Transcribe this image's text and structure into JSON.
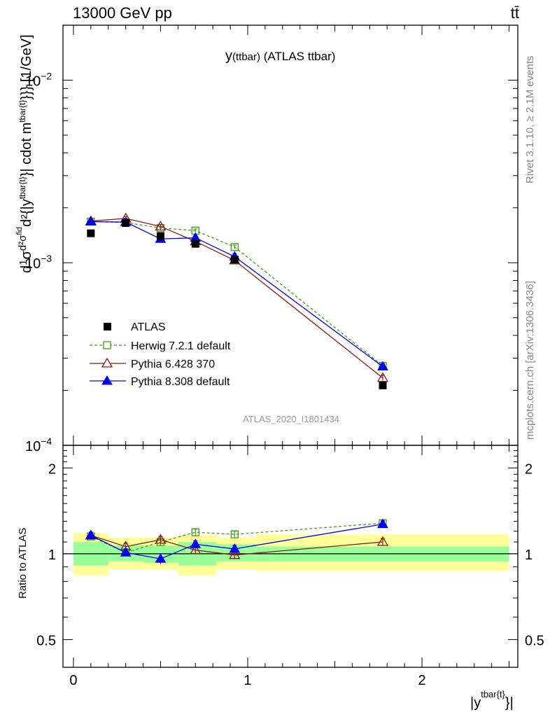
{
  "header": {
    "left": "13000 GeV pp",
    "right": "tt̄"
  },
  "side_text": {
    "rivet": "Rivet 3.1.10, ≥ 2.1M events",
    "mcplots": "mcplots.cern.ch [arXiv:1306.3436]"
  },
  "chart_data": [
    {
      "type": "scatter",
      "title": "y(ttbar) (ATLAS ttbar)",
      "title_parts": {
        "main": "y",
        "sub": "(ttbar)",
        "rest": " (ATLAS ttbar)"
      },
      "watermark": "ATLAS_2020_I1801434",
      "ylabel": "d¹/σ d²σᶠⁱᵈ/d²{|yᵗᵇᵃʳ{t}|} cdot mᵗᵇᵃʳ{t}}}} [1/GeV]",
      "ylabel_parts": {
        "d": "d",
        "one": "1",
        "sigma": "σ",
        "d2sigma": "d²σ",
        "fid": "fid",
        "d2": "d²",
        "absy": "{|y",
        "sup1": "tbar{t}",
        "cdot": "}| cdot m",
        "sup2": "tbar{t}",
        "tail": "}}} [1/GeV]"
      },
      "yscale": "log",
      "ylim": [
        0.0001,
        0.02
      ],
      "xlim": [
        -0.06,
        2.55
      ],
      "y_ticks": [
        {
          "value": 0.01,
          "base": "10",
          "exp": "−2"
        },
        {
          "value": 0.001,
          "base": "10",
          "exp": "−3"
        },
        {
          "value": 0.0001,
          "base": "10",
          "exp": "−4"
        }
      ],
      "legend_position": "middle-left",
      "series": [
        {
          "name": "ATLAS",
          "color": "#000000",
          "marker": "square-filled",
          "line": "none",
          "x": [
            0.1,
            0.3,
            0.5,
            0.7,
            0.925,
            1.775
          ],
          "y": [
            0.00145,
            0.00165,
            0.0014,
            0.00127,
            0.00104,
            0.000213
          ],
          "yerr": [
            4e-05,
            4e-05,
            4e-05,
            3e-05,
            3e-05,
            6e-06
          ]
        },
        {
          "name": "Herwig 7.2.1 default",
          "color": "#3f9e18",
          "marker": "square-open",
          "line": "dashed",
          "x": [
            0.1,
            0.3,
            0.5,
            0.7,
            0.925,
            1.775
          ],
          "y": [
            0.00168,
            0.00166,
            0.00155,
            0.0015,
            0.00122,
            0.000272
          ],
          "yerr": [
            3e-05,
            3e-05,
            3e-05,
            3e-05,
            3e-05,
            8e-06
          ]
        },
        {
          "name": "Pythia 6.428 370",
          "color": "#8b1a1a",
          "marker": "triangle-open",
          "line": "solid",
          "x": [
            0.1,
            0.3,
            0.5,
            0.7,
            0.925,
            1.775
          ],
          "y": [
            0.00169,
            0.00175,
            0.00158,
            0.00131,
            0.00103,
            0.000234
          ],
          "yerr": [
            3e-05,
            4e-05,
            4e-05,
            3e-05,
            3e-05,
            8e-06
          ]
        },
        {
          "name": "Pythia 8.308 default",
          "color": "#0000ee",
          "marker": "triangle-filled",
          "line": "solid",
          "x": [
            0.1,
            0.3,
            0.5,
            0.7,
            0.925,
            1.775
          ],
          "y": [
            0.00168,
            0.00167,
            0.00135,
            0.00137,
            0.00108,
            0.00027
          ],
          "yerr": [
            4e-05,
            4e-05,
            5e-05,
            4e-05,
            4e-05,
            1e-05
          ]
        }
      ]
    },
    {
      "type": "scatter",
      "ylabel": "Ratio to ATLAS",
      "xlabel": "|y",
      "xlabel_sup": "tbar{t}",
      "xlabel_tail": "}|",
      "yscale": "log",
      "ylim": [
        0.4,
        2.4
      ],
      "xlim": [
        -0.06,
        2.55
      ],
      "x_ticks": [
        {
          "value": 0,
          "label": "0"
        },
        {
          "value": 1,
          "label": "1"
        },
        {
          "value": 2,
          "label": "2"
        }
      ],
      "y_ticks": [
        {
          "value": 0.5,
          "label": "0.5"
        },
        {
          "value": 1,
          "label": "1"
        },
        {
          "value": 2,
          "label": "2"
        }
      ],
      "bands": {
        "edges": [
          0,
          0.2,
          0.4,
          0.6,
          0.82,
          1.05,
          2.5
        ],
        "inner": [
          [
            0.91,
            1.1
          ],
          [
            0.94,
            1.07
          ],
          [
            0.93,
            1.07
          ],
          [
            0.91,
            1.1
          ],
          [
            0.94,
            1.08
          ],
          [
            0.94,
            1.06
          ]
        ],
        "outer": [
          [
            0.84,
            1.18
          ],
          [
            0.88,
            1.14
          ],
          [
            0.88,
            1.14
          ],
          [
            0.84,
            1.16
          ],
          [
            0.88,
            1.14
          ],
          [
            0.87,
            1.17
          ]
        ],
        "inner_color": "#99ff99",
        "outer_color": "#ffff99"
      },
      "series": [
        {
          "name": "Herwig 7.2.1 default",
          "color": "#3f9e18",
          "marker": "square-open",
          "line": "dashed",
          "x": [
            0.1,
            0.3,
            0.5,
            0.7,
            0.925,
            1.775
          ],
          "y": [
            1.15,
            1.01,
            1.1,
            1.19,
            1.17,
            1.28
          ],
          "yerr": [
            0.03,
            0.03,
            0.03,
            0.03,
            0.03,
            0.03
          ]
        },
        {
          "name": "Pythia 6.428 370",
          "color": "#8b1a1a",
          "marker": "triangle-open",
          "line": "solid",
          "x": [
            0.1,
            0.3,
            0.5,
            0.7,
            0.925,
            1.775
          ],
          "y": [
            1.16,
            1.06,
            1.12,
            1.03,
            0.99,
            1.1
          ],
          "yerr": [
            0.03,
            0.03,
            0.03,
            0.03,
            0.03,
            0.03
          ]
        },
        {
          "name": "Pythia 8.308 default",
          "color": "#0000ee",
          "marker": "triangle-filled",
          "line": "solid",
          "x": [
            0.1,
            0.3,
            0.5,
            0.7,
            0.925,
            1.775
          ],
          "y": [
            1.16,
            1.01,
            0.96,
            1.08,
            1.04,
            1.27
          ],
          "yerr": [
            0.03,
            0.03,
            0.04,
            0.03,
            0.03,
            0.03
          ]
        }
      ]
    }
  ]
}
